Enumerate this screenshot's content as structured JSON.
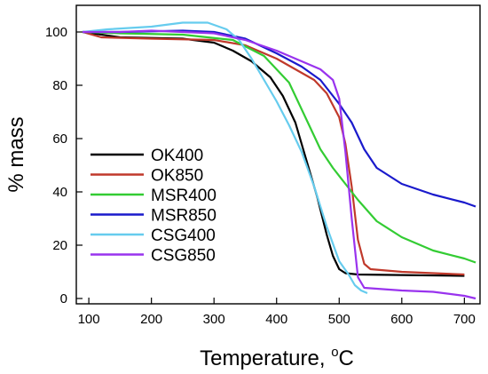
{
  "chart_data": {
    "type": "line",
    "xlabel": "Temperature, ",
    "xlabel_unit_sup": "o",
    "xlabel_unit": "C",
    "ylabel": "% mass",
    "xlim": [
      80,
      725
    ],
    "ylim": [
      -2,
      110
    ],
    "xticks": [
      100,
      200,
      300,
      400,
      500,
      600,
      700
    ],
    "yticks": [
      0,
      20,
      40,
      60,
      80,
      100
    ],
    "grid": false,
    "legend_position": "center-left",
    "series": [
      {
        "name": "OK400",
        "color": "#000000",
        "x": [
          90,
          150,
          250,
          300,
          330,
          360,
          390,
          410,
          430,
          450,
          465,
          480,
          490,
          500,
          510,
          530,
          600,
          700
        ],
        "y": [
          100,
          98,
          97.5,
          96,
          93,
          89,
          83,
          76,
          66,
          50,
          38,
          24,
          16,
          11,
          9.5,
          9,
          8.8,
          8.5
        ]
      },
      {
        "name": "OK850",
        "color": "#c0392b",
        "x": [
          90,
          120,
          200,
          300,
          350,
          400,
          430,
          460,
          480,
          500,
          510,
          520,
          530,
          540,
          550,
          600,
          700
        ],
        "y": [
          100,
          98,
          97.5,
          97,
          95,
          90,
          86,
          82,
          77,
          68,
          58,
          42,
          22,
          13,
          11,
          10,
          9
        ]
      },
      {
        "name": "MSR400",
        "color": "#33cc33",
        "x": [
          90,
          150,
          250,
          330,
          380,
          420,
          450,
          470,
          490,
          510,
          530,
          560,
          600,
          650,
          700,
          718
        ],
        "y": [
          100,
          99.5,
          99,
          97,
          91,
          81,
          66,
          56,
          49,
          43,
          37,
          29,
          23,
          18,
          15,
          13.5
        ]
      },
      {
        "name": "MSR850",
        "color": "#1a1acc",
        "x": [
          90,
          150,
          250,
          300,
          350,
          400,
          440,
          470,
          500,
          520,
          540,
          560,
          600,
          650,
          700,
          718
        ],
        "y": [
          100,
          100,
          100.5,
          100,
          97.5,
          92,
          87,
          82,
          73,
          66,
          56,
          49,
          43,
          39,
          36,
          34.5
        ]
      },
      {
        "name": "CSG400",
        "color": "#66ccee",
        "x": [
          90,
          130,
          200,
          250,
          290,
          320,
          340,
          360,
          380,
          400,
          420,
          440,
          460,
          480,
          500,
          515,
          525,
          535,
          545
        ],
        "y": [
          100,
          101,
          102,
          103.5,
          103.5,
          101,
          97,
          90,
          82,
          74,
          65,
          55,
          42,
          27,
          14,
          9,
          5,
          3,
          2
        ]
      },
      {
        "name": "CSG850",
        "color": "#9933ee",
        "x": [
          90,
          150,
          200,
          300,
          350,
          400,
          440,
          470,
          490,
          500,
          510,
          520,
          530,
          540,
          600,
          650,
          700,
          718
        ],
        "y": [
          100,
          100,
          100.5,
          99.5,
          97,
          93,
          89,
          86,
          82,
          75,
          55,
          30,
          8,
          4,
          3,
          2.5,
          1,
          0
        ]
      }
    ]
  }
}
